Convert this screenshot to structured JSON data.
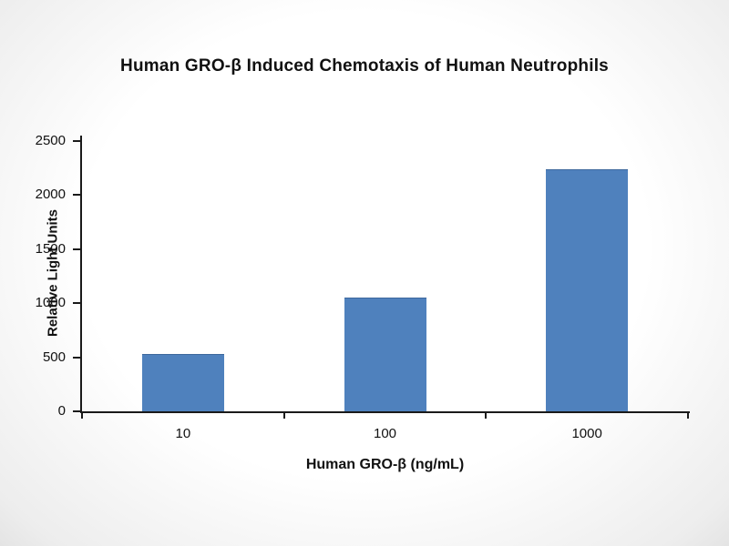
{
  "chart_data": {
    "type": "bar",
    "title": "Human GRO-β Induced Chemotaxis of Human Neutrophils",
    "xlabel": "Human GRO-β (ng/mL)",
    "ylabel": "Relative Light Units",
    "categories": [
      "10",
      "100",
      "1000"
    ],
    "values": [
      520,
      1040,
      2230
    ],
    "ylim": [
      0,
      2500
    ],
    "yticks": [
      0,
      500,
      1000,
      1500,
      2000,
      2500
    ],
    "grid": false,
    "legend": "none",
    "bar_color": "#4f81bd",
    "bar_border_color": "#3d689c",
    "axis_color": "#1a1a1a"
  }
}
